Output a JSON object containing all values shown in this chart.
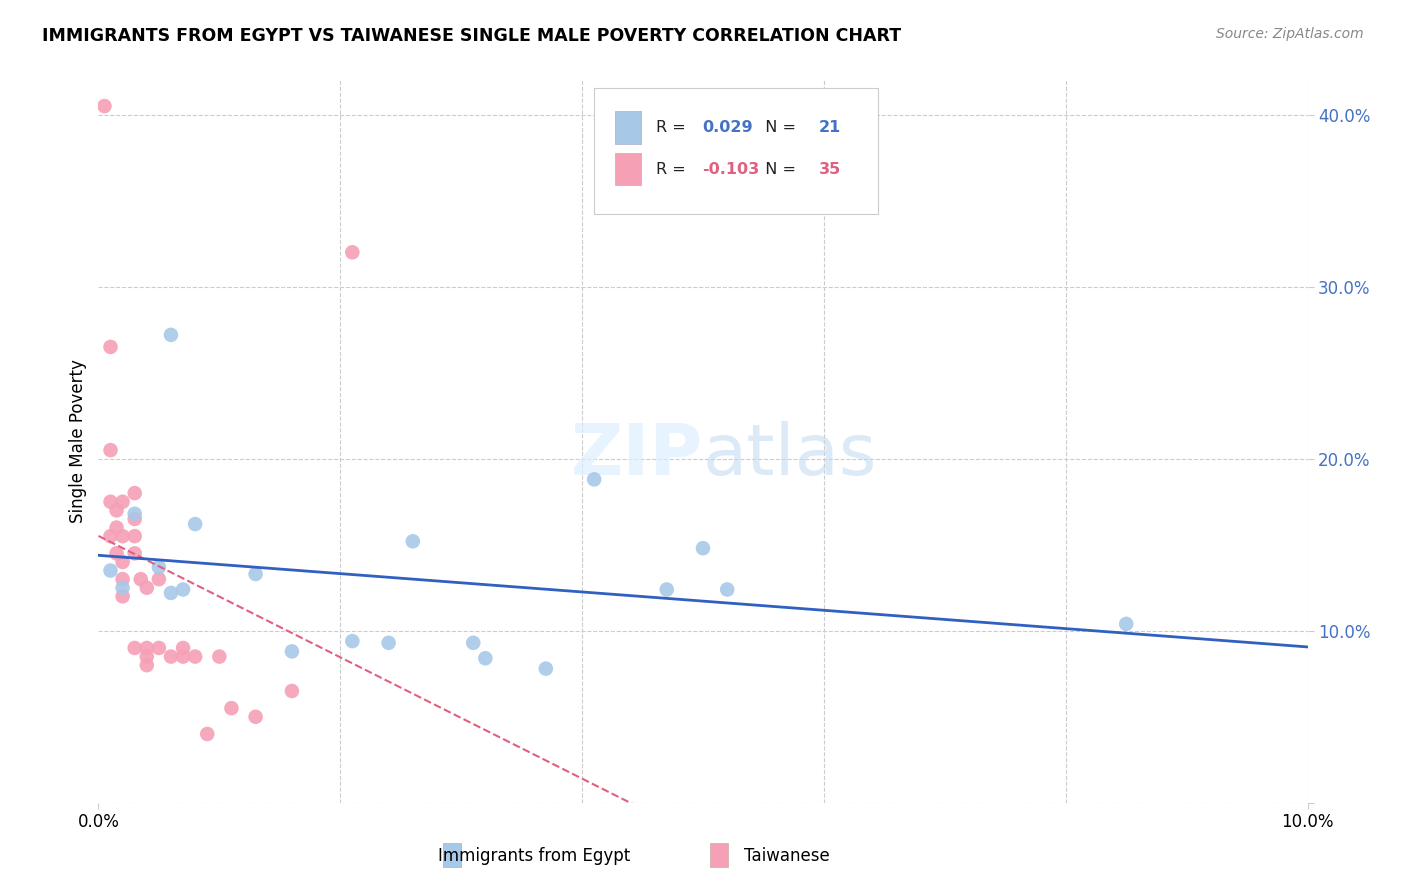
{
  "title": "IMMIGRANTS FROM EGYPT VS TAIWANESE SINGLE MALE POVERTY CORRELATION CHART",
  "source": "Source: ZipAtlas.com",
  "ylabel": "Single Male Poverty",
  "xlim": [
    0.0,
    0.1
  ],
  "ylim": [
    0.0,
    0.42
  ],
  "y_ticks_right": [
    0.0,
    0.1,
    0.2,
    0.3,
    0.4
  ],
  "y_tick_labels_right": [
    "",
    "10.0%",
    "20.0%",
    "30.0%",
    "40.0%"
  ],
  "watermark": "ZIPatlas",
  "egypt_R": "0.029",
  "egypt_N": "21",
  "taiwan_R": "-0.103",
  "taiwan_N": "35",
  "egypt_color": "#a8c8e8",
  "taiwan_color": "#f5a0b5",
  "egypt_line_color": "#3060c0",
  "taiwan_line_color": "#e06080",
  "grid_color": "#cccccc",
  "egypt_points_x": [
    0.001,
    0.002,
    0.003,
    0.005,
    0.006,
    0.007,
    0.008,
    0.013,
    0.016,
    0.021,
    0.024,
    0.026,
    0.031,
    0.032,
    0.037,
    0.041,
    0.047,
    0.05,
    0.052,
    0.085,
    0.006
  ],
  "egypt_points_y": [
    0.135,
    0.125,
    0.168,
    0.137,
    0.122,
    0.124,
    0.162,
    0.133,
    0.088,
    0.094,
    0.093,
    0.152,
    0.093,
    0.084,
    0.078,
    0.188,
    0.124,
    0.148,
    0.124,
    0.104,
    0.272
  ],
  "taiwan_points_x": [
    0.0005,
    0.001,
    0.001,
    0.001,
    0.001,
    0.0015,
    0.0015,
    0.0015,
    0.002,
    0.002,
    0.002,
    0.002,
    0.002,
    0.003,
    0.003,
    0.003,
    0.003,
    0.003,
    0.0035,
    0.004,
    0.004,
    0.004,
    0.004,
    0.005,
    0.005,
    0.006,
    0.007,
    0.007,
    0.008,
    0.009,
    0.01,
    0.011,
    0.013,
    0.016,
    0.021
  ],
  "taiwan_points_y": [
    0.405,
    0.265,
    0.205,
    0.175,
    0.155,
    0.17,
    0.16,
    0.145,
    0.175,
    0.155,
    0.14,
    0.13,
    0.12,
    0.18,
    0.165,
    0.155,
    0.145,
    0.09,
    0.13,
    0.125,
    0.09,
    0.085,
    0.08,
    0.13,
    0.09,
    0.085,
    0.085,
    0.09,
    0.085,
    0.04,
    0.085,
    0.055,
    0.05,
    0.065,
    0.32
  ]
}
